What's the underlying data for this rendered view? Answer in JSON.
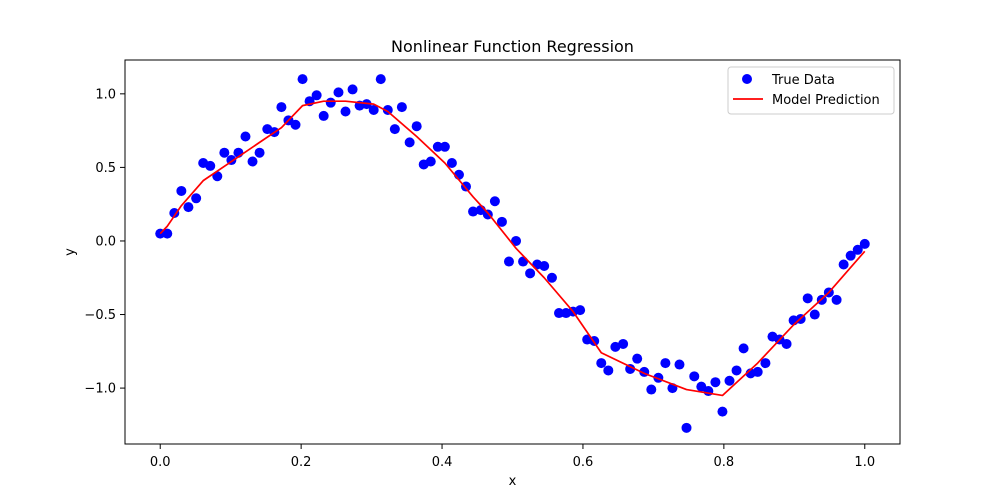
{
  "chart_data": {
    "type": "scatter",
    "title": "Nonlinear Function Regression",
    "xlabel": "x",
    "ylabel": "y",
    "xlim": [
      -0.05,
      1.05
    ],
    "ylim": [
      -1.38,
      1.23
    ],
    "xticks": [
      0.0,
      0.2,
      0.4,
      0.6,
      0.8,
      1.0
    ],
    "xtick_labels": [
      "0.0",
      "0.2",
      "0.4",
      "0.6",
      "0.8",
      "1.0"
    ],
    "yticks": [
      -1.0,
      -0.5,
      0.0,
      0.5,
      1.0
    ],
    "ytick_labels": [
      "−1.0",
      "−0.5",
      "0.0",
      "0.5",
      "1.0"
    ],
    "grid": false,
    "legend_position": "top-right",
    "series": [
      {
        "name": "True Data",
        "kind": "scatter",
        "color": "#0000ff",
        "points": [
          [
            0.0,
            0.05
          ],
          [
            0.01,
            0.05
          ],
          [
            0.02,
            0.19
          ],
          [
            0.03,
            0.34
          ],
          [
            0.04,
            0.23
          ],
          [
            0.051,
            0.29
          ],
          [
            0.061,
            0.53
          ],
          [
            0.071,
            0.51
          ],
          [
            0.081,
            0.44
          ],
          [
            0.091,
            0.6
          ],
          [
            0.101,
            0.55
          ],
          [
            0.111,
            0.6
          ],
          [
            0.121,
            0.71
          ],
          [
            0.131,
            0.54
          ],
          [
            0.141,
            0.6
          ],
          [
            0.152,
            0.76
          ],
          [
            0.162,
            0.74
          ],
          [
            0.172,
            0.91
          ],
          [
            0.182,
            0.82
          ],
          [
            0.192,
            0.79
          ],
          [
            0.202,
            1.1
          ],
          [
            0.212,
            0.95
          ],
          [
            0.222,
            0.99
          ],
          [
            0.232,
            0.85
          ],
          [
            0.242,
            0.94
          ],
          [
            0.253,
            1.01
          ],
          [
            0.263,
            0.88
          ],
          [
            0.273,
            1.03
          ],
          [
            0.283,
            0.92
          ],
          [
            0.293,
            0.93
          ],
          [
            0.303,
            0.89
          ],
          [
            0.313,
            1.1
          ],
          [
            0.323,
            0.89
          ],
          [
            0.333,
            0.76
          ],
          [
            0.343,
            0.91
          ],
          [
            0.354,
            0.67
          ],
          [
            0.364,
            0.78
          ],
          [
            0.374,
            0.52
          ],
          [
            0.384,
            0.54
          ],
          [
            0.394,
            0.64
          ],
          [
            0.404,
            0.64
          ],
          [
            0.414,
            0.53
          ],
          [
            0.424,
            0.45
          ],
          [
            0.434,
            0.37
          ],
          [
            0.444,
            0.2
          ],
          [
            0.455,
            0.21
          ],
          [
            0.465,
            0.18
          ],
          [
            0.475,
            0.27
          ],
          [
            0.485,
            0.13
          ],
          [
            0.495,
            -0.14
          ],
          [
            0.505,
            0.0
          ],
          [
            0.515,
            -0.14
          ],
          [
            0.525,
            -0.22
          ],
          [
            0.535,
            -0.16
          ],
          [
            0.545,
            -0.17
          ],
          [
            0.556,
            -0.25
          ],
          [
            0.566,
            -0.49
          ],
          [
            0.576,
            -0.49
          ],
          [
            0.586,
            -0.48
          ],
          [
            0.596,
            -0.47
          ],
          [
            0.606,
            -0.67
          ],
          [
            0.616,
            -0.68
          ],
          [
            0.626,
            -0.83
          ],
          [
            0.636,
            -0.88
          ],
          [
            0.646,
            -0.72
          ],
          [
            0.657,
            -0.7
          ],
          [
            0.667,
            -0.87
          ],
          [
            0.677,
            -0.8
          ],
          [
            0.687,
            -0.89
          ],
          [
            0.697,
            -1.01
          ],
          [
            0.707,
            -0.93
          ],
          [
            0.717,
            -0.83
          ],
          [
            0.727,
            -1.0
          ],
          [
            0.737,
            -0.84
          ],
          [
            0.747,
            -1.27
          ],
          [
            0.758,
            -0.92
          ],
          [
            0.768,
            -0.99
          ],
          [
            0.778,
            -1.02
          ],
          [
            0.788,
            -0.96
          ],
          [
            0.798,
            -1.16
          ],
          [
            0.808,
            -0.95
          ],
          [
            0.818,
            -0.88
          ],
          [
            0.828,
            -0.73
          ],
          [
            0.838,
            -0.9
          ],
          [
            0.848,
            -0.89
          ],
          [
            0.859,
            -0.83
          ],
          [
            0.869,
            -0.65
          ],
          [
            0.879,
            -0.67
          ],
          [
            0.889,
            -0.7
          ],
          [
            0.899,
            -0.54
          ],
          [
            0.909,
            -0.53
          ],
          [
            0.919,
            -0.39
          ],
          [
            0.929,
            -0.5
          ],
          [
            0.939,
            -0.4
          ],
          [
            0.949,
            -0.35
          ],
          [
            0.96,
            -0.4
          ],
          [
            0.97,
            -0.16
          ],
          [
            0.98,
            -0.1
          ],
          [
            0.99,
            -0.06
          ],
          [
            1.0,
            -0.02
          ]
        ]
      },
      {
        "name": "Model Prediction",
        "kind": "line",
        "color": "#ff0000",
        "points": [
          [
            0.0,
            0.05
          ],
          [
            0.01,
            0.1
          ],
          [
            0.02,
            0.17
          ],
          [
            0.03,
            0.24
          ],
          [
            0.061,
            0.41
          ],
          [
            0.101,
            0.54
          ],
          [
            0.141,
            0.67
          ],
          [
            0.172,
            0.77
          ],
          [
            0.202,
            0.92
          ],
          [
            0.232,
            0.95
          ],
          [
            0.263,
            0.95
          ],
          [
            0.303,
            0.93
          ],
          [
            0.323,
            0.88
          ],
          [
            0.364,
            0.71
          ],
          [
            0.404,
            0.53
          ],
          [
            0.444,
            0.3
          ],
          [
            0.465,
            0.19
          ],
          [
            0.505,
            -0.05
          ],
          [
            0.545,
            -0.25
          ],
          [
            0.586,
            -0.48
          ],
          [
            0.626,
            -0.76
          ],
          [
            0.687,
            -0.9
          ],
          [
            0.747,
            -1.01
          ],
          [
            0.798,
            -1.05
          ],
          [
            0.848,
            -0.83
          ],
          [
            0.899,
            -0.57
          ],
          [
            0.949,
            -0.35
          ],
          [
            1.0,
            -0.07
          ]
        ]
      }
    ]
  }
}
